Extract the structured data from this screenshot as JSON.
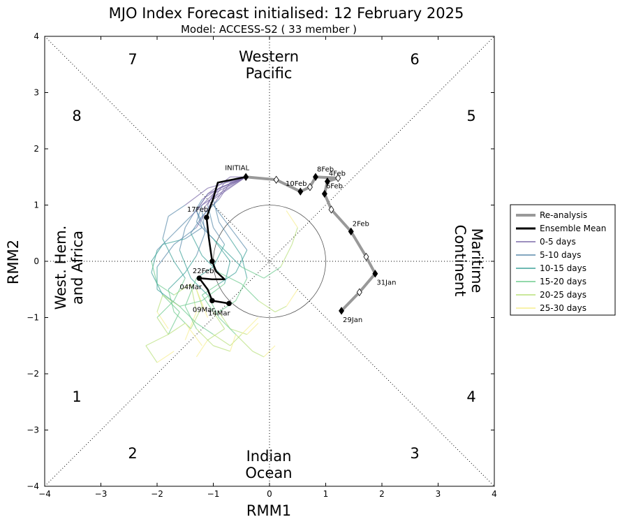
{
  "chart_data": {
    "type": "scatter",
    "title": "MJO Index Forecast initialised:  12  February 2025",
    "subtitle": "Model: ACCESS-S2 ( 33 member )",
    "xlabel": "RMM1",
    "ylabel": "RMM2",
    "xlim": [
      -4,
      4
    ],
    "ylim": [
      -4,
      4
    ],
    "xticks": [
      "−4",
      "−3",
      "−2",
      "−1",
      "0",
      "1",
      "2",
      "3",
      "4"
    ],
    "yticks": [
      "−4",
      "−3",
      "−2",
      "−1",
      "0",
      "1",
      "2",
      "3",
      "4"
    ],
    "phases": [
      "1",
      "2",
      "3",
      "4",
      "5",
      "6",
      "7",
      "8"
    ],
    "regions": {
      "top": [
        "Western",
        "Pacific"
      ],
      "bottom": [
        "Indian",
        "Ocean"
      ],
      "left": [
        "West. Hem.",
        "and Africa"
      ],
      "right": [
        "Maritime",
        "Continent"
      ]
    },
    "legend": {
      "placement": "right",
      "items": [
        {
          "label": "Re-analysis",
          "color": "#999999"
        },
        {
          "label": "Ensemble Mean",
          "color": "#000000"
        },
        {
          "label": "0-5 days",
          "color": "#7b6aa8"
        },
        {
          "label": "5-10 days",
          "color": "#5a8aab"
        },
        {
          "label": "10-15 days",
          "color": "#3fa29a"
        },
        {
          "label": "15-20 days",
          "color": "#6ecb8e"
        },
        {
          "label": "20-25 days",
          "color": "#b8e07a"
        },
        {
          "label": "25-30 days",
          "color": "#f6ee8e"
        }
      ]
    },
    "reanalysis": [
      {
        "x": 1.28,
        "y": -0.88,
        "label": "29Jan"
      },
      {
        "x": 1.6,
        "y": -0.55
      },
      {
        "x": 1.88,
        "y": -0.22,
        "label": "31Jan"
      },
      {
        "x": 1.72,
        "y": 0.08
      },
      {
        "x": 1.45,
        "y": 0.53,
        "label": "2Feb"
      },
      {
        "x": 1.1,
        "y": 0.92
      },
      {
        "x": 0.98,
        "y": 1.2,
        "label": "6Feb"
      },
      {
        "x": 1.03,
        "y": 1.42,
        "label": "4Feb"
      },
      {
        "x": 1.22,
        "y": 1.48
      },
      {
        "x": 0.82,
        "y": 1.5,
        "label": "8Feb"
      },
      {
        "x": 0.72,
        "y": 1.32
      },
      {
        "x": 0.55,
        "y": 1.24,
        "label": "10Feb"
      },
      {
        "x": 0.12,
        "y": 1.45
      },
      {
        "x": -0.42,
        "y": 1.5
      }
    ],
    "ensemble_mean": [
      {
        "x": -0.42,
        "y": 1.5,
        "label": "INITIAL"
      },
      {
        "x": -0.92,
        "y": 1.4
      },
      {
        "x": -1.0,
        "y": 1.12
      },
      {
        "x": -1.12,
        "y": 0.78,
        "label": "17Feb"
      },
      {
        "x": -1.08,
        "y": 0.42
      },
      {
        "x": -1.02,
        "y": 0.0,
        "label": "22Feb"
      },
      {
        "x": -0.95,
        "y": -0.18
      },
      {
        "x": -0.8,
        "y": -0.32
      },
      {
        "x": -1.02,
        "y": -0.32
      },
      {
        "x": -1.25,
        "y": -0.3,
        "label": "04Mar"
      },
      {
        "x": -1.1,
        "y": -0.5
      },
      {
        "x": -1.02,
        "y": -0.7,
        "label": "09Mar"
      },
      {
        "x": -0.72,
        "y": -0.75,
        "label": "14Mar"
      }
    ],
    "ensemble_members": [
      {
        "x": [
          -0.42,
          -0.9,
          -1.2,
          -1.15,
          -1.3,
          -1.5,
          -1.8,
          -1.7,
          -1.4,
          -1.2,
          -1.3,
          -1.1
        ],
        "y": [
          1.5,
          1.3,
          0.9,
          0.5,
          0.1,
          -0.2,
          -0.5,
          -0.9,
          -1.2,
          -0.8,
          -0.5,
          -1.0
        ]
      },
      {
        "x": [
          -0.42,
          -0.8,
          -1.0,
          -0.9,
          -0.7,
          -0.5,
          -0.4,
          -0.6,
          -0.9,
          -0.7,
          -0.4,
          -0.2
        ],
        "y": [
          1.5,
          1.4,
          1.1,
          0.7,
          0.4,
          0.1,
          -0.3,
          -0.7,
          -0.9,
          -1.2,
          -1.3,
          -1.1
        ]
      },
      {
        "x": [
          -0.42,
          -1.0,
          -1.4,
          -1.7,
          -2.0,
          -2.1,
          -1.9,
          -1.6,
          -1.8,
          -2.2,
          -2.0,
          -1.7
        ],
        "y": [
          1.5,
          1.2,
          0.8,
          0.5,
          0.2,
          -0.2,
          -0.6,
          -0.9,
          -1.3,
          -1.5,
          -1.8,
          -1.6
        ]
      },
      {
        "x": [
          -0.42,
          -0.7,
          -1.1,
          -1.3,
          -1.1,
          -0.8,
          -0.5,
          -0.1,
          0.2,
          0.4,
          0.5,
          0.3
        ],
        "y": [
          1.5,
          1.5,
          1.2,
          0.9,
          0.5,
          0.2,
          -0.1,
          -0.3,
          -0.1,
          0.3,
          0.6,
          0.9
        ]
      },
      {
        "x": [
          -0.42,
          -0.9,
          -1.2,
          -1.5,
          -1.6,
          -1.4,
          -1.1,
          -0.9,
          -0.6,
          -0.3,
          -0.1,
          0.1
        ],
        "y": [
          1.5,
          1.3,
          1.1,
          0.6,
          0.2,
          -0.3,
          -0.6,
          -1.0,
          -1.3,
          -1.6,
          -1.7,
          -1.5
        ]
      },
      {
        "x": [
          -0.42,
          -1.1,
          -1.3,
          -1.2,
          -1.5,
          -1.9,
          -2.1,
          -2.0,
          -1.7,
          -1.4,
          -1.3,
          -1.5
        ],
        "y": [
          1.5,
          1.2,
          0.9,
          0.6,
          0.4,
          0.3,
          0.0,
          -0.4,
          -0.6,
          -0.4,
          -0.9,
          -1.4
        ]
      },
      {
        "x": [
          -0.42,
          -0.8,
          -1.0,
          -0.7,
          -0.4,
          -0.6,
          -0.9,
          -1.2,
          -1.0,
          -0.8,
          -1.1,
          -1.3
        ],
        "y": [
          1.5,
          1.3,
          1.0,
          0.6,
          0.2,
          -0.2,
          -0.4,
          -0.6,
          -0.9,
          -1.2,
          -1.4,
          -1.7
        ]
      },
      {
        "x": [
          -0.42,
          -1.0,
          -1.3,
          -1.7,
          -2.0,
          -2.0,
          -1.6,
          -1.3,
          -1.0,
          -0.7,
          -0.5,
          -0.2
        ],
        "y": [
          1.5,
          1.1,
          0.6,
          0.3,
          -0.1,
          -0.5,
          -0.8,
          -1.1,
          -1.3,
          -1.5,
          -1.3,
          -1.0
        ]
      },
      {
        "x": [
          -0.42,
          -0.9,
          -1.2,
          -1.3,
          -1.0,
          -0.7,
          -0.8,
          -1.2,
          -1.6,
          -1.9,
          -2.0,
          -1.8
        ],
        "y": [
          1.5,
          1.2,
          1.0,
          0.7,
          0.4,
          0.0,
          -0.4,
          -0.7,
          -0.8,
          -0.6,
          -0.9,
          -1.2
        ]
      },
      {
        "x": [
          -0.42,
          -0.7,
          -0.9,
          -1.2,
          -1.4,
          -1.2,
          -0.9,
          -0.5,
          -0.2,
          0.1,
          0.3,
          0.5
        ],
        "y": [
          1.5,
          1.4,
          1.1,
          0.8,
          0.5,
          0.1,
          -0.2,
          -0.4,
          -0.7,
          -0.9,
          -0.8,
          -0.5
        ]
      },
      {
        "x": [
          -0.42,
          -1.1,
          -1.5,
          -1.8,
          -1.9,
          -1.7,
          -1.5,
          -1.7,
          -2.0,
          -1.8,
          -1.5,
          -1.2
        ],
        "y": [
          1.5,
          1.3,
          1.0,
          0.8,
          0.4,
          0.0,
          -0.3,
          -0.7,
          -1.0,
          -1.3,
          -1.1,
          -1.5
        ]
      },
      {
        "x": [
          -0.42,
          -0.9,
          -1.1,
          -1.0,
          -0.8,
          -1.0,
          -1.3,
          -1.5,
          -1.3,
          -1.0,
          -0.7,
          -0.6
        ],
        "y": [
          1.5,
          1.4,
          1.0,
          0.6,
          0.3,
          -0.1,
          -0.3,
          -0.8,
          -1.2,
          -1.5,
          -1.6,
          -1.3
        ]
      }
    ]
  }
}
